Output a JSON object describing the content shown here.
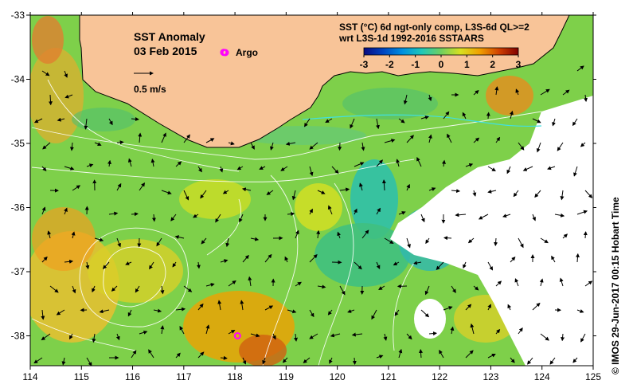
{
  "map": {
    "title": "SST Anomaly",
    "date": "03 Feb 2015",
    "argo_label": "Argo",
    "velocity_label": "0.5 m/s",
    "product_line1": "SST (°C) 6d ngt-only comp, L3S-6d QL>=2",
    "product_line2": "wrt L3S-1d 1992-2016 SSTAARS",
    "credit": "©  IMOS 29-Jun-2017 00:15 Hobart Time",
    "lon_range": [
      114,
      125
    ],
    "lat_range": [
      -38.5,
      -33
    ],
    "x_ticks": [
      "114",
      "115",
      "116",
      "117",
      "118",
      "119",
      "120",
      "121",
      "122",
      "123",
      "124",
      "125"
    ],
    "y_ticks": [
      "-33",
      "-34",
      "-35",
      "-36",
      "-37",
      "-38"
    ],
    "colorbar": {
      "ticks": [
        "-3",
        "-2",
        "-1",
        "0",
        "1",
        "2",
        "3"
      ],
      "colors": [
        "#0a0a80",
        "#0044c0",
        "#0090e0",
        "#20c8b8",
        "#70d060",
        "#d8e020",
        "#f0a000",
        "#d04000",
        "#800000"
      ]
    },
    "colors": {
      "land": "#f8c498",
      "ocean_base": "#7ed04a",
      "no_data": "#ffffff",
      "argo": "#ff00ff"
    },
    "argo_floats": [
      {
        "lon": 117.78,
        "lat": -33.58
      },
      {
        "lon": 118.05,
        "lat": -38.0
      }
    ]
  }
}
